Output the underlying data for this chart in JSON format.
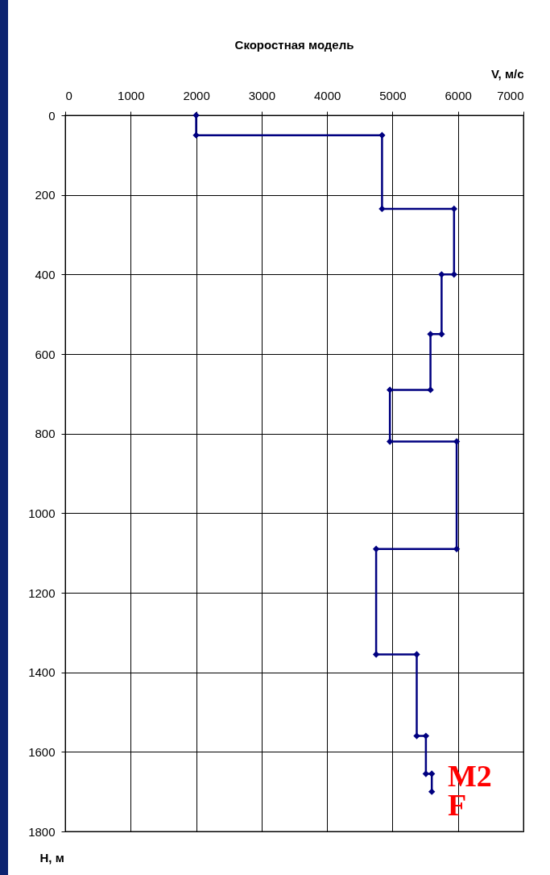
{
  "chart_data": {
    "type": "line",
    "title": "Скоростная модель",
    "xlabel": "V, м/с",
    "ylabel": "Н, м",
    "x": [
      2000,
      2000,
      4840,
      4840,
      5940,
      5940,
      5750,
      5750,
      5580,
      5580,
      4960,
      4960,
      5980,
      5980,
      4750,
      4750,
      5370,
      5370,
      5510,
      5510,
      5600,
      5600
    ],
    "values": [
      0,
      50,
      50,
      235,
      235,
      400,
      400,
      550,
      550,
      690,
      690,
      820,
      820,
      1090,
      1090,
      1355,
      1355,
      1560,
      1560,
      1655,
      1655,
      1700
    ],
    "color": "#000080",
    "marker": "diamond",
    "line_style": "solid",
    "grid": true,
    "xlim": [
      0,
      7000
    ],
    "xticks": [
      0,
      1000,
      2000,
      3000,
      4000,
      5000,
      6000,
      7000
    ],
    "ylim": [
      1800,
      0
    ],
    "yticks": [
      0,
      200,
      400,
      600,
      800,
      1000,
      1200,
      1400,
      1600,
      1800
    ],
    "annotations": [
      "M2",
      "F"
    ]
  }
}
